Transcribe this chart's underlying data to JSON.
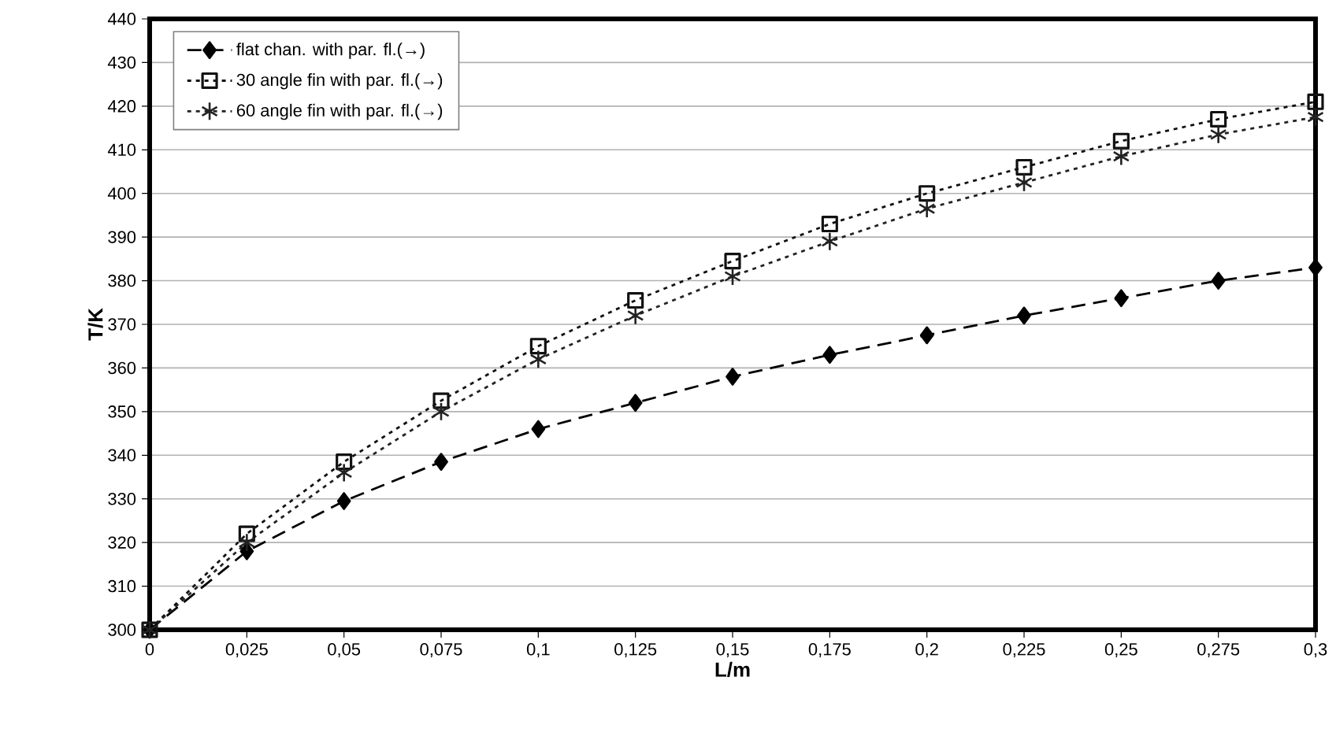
{
  "chart_data": {
    "type": "line",
    "xlabel": "L/m",
    "ylabel": "T/K",
    "x": [
      0,
      0.025,
      0.05,
      0.075,
      0.1,
      0.125,
      0.15,
      0.175,
      0.2,
      0.225,
      0.25,
      0.275,
      0.3
    ],
    "series": [
      {
        "name": "flat chan. with par. fl.(→)",
        "color": "#000000",
        "marker": "diamond",
        "line_style": "dashed",
        "values": [
          300,
          318,
          329.5,
          338.5,
          346,
          352,
          358,
          363,
          367.5,
          372,
          376,
          380,
          383
        ]
      },
      {
        "name": "30 angle fin with par. fl.(→)",
        "color": "#111111",
        "marker": "square",
        "line_style": "dotted",
        "values": [
          300,
          322,
          338.5,
          352.5,
          365,
          375.5,
          384.5,
          393,
          400,
          406,
          412,
          417,
          421
        ]
      },
      {
        "name": "60 angle fin with par. fl.(→)",
        "color": "#222222",
        "marker": "cross",
        "line_style": "dotted",
        "values": [
          300,
          320,
          336,
          350,
          362,
          372,
          381,
          389,
          396.5,
          402.5,
          408.5,
          413.5,
          417.5
        ]
      }
    ],
    "xlim": [
      0,
      0.3
    ],
    "ylim": [
      300,
      440
    ],
    "xticks": [
      0,
      {
        "value": 0.025,
        "label": "0,025"
      },
      {
        "value": 0.05,
        "label": "0,05"
      },
      {
        "value": 0.075,
        "label": "0,075"
      },
      {
        "value": 0.1,
        "label": "0,1"
      },
      {
        "value": 0.125,
        "label": "0,125"
      },
      {
        "value": 0.15,
        "label": "0,15"
      },
      {
        "value": 0.175,
        "label": "0,175"
      },
      {
        "value": 0.2,
        "label": "0,2"
      },
      {
        "value": 0.225,
        "label": "0,225"
      },
      {
        "value": 0.25,
        "label": "0,25"
      },
      {
        "value": 0.275,
        "label": "0,275"
      },
      {
        "value": 0.3,
        "label": "0,3"
      }
    ],
    "yticks": [
      300,
      310,
      320,
      330,
      340,
      350,
      360,
      370,
      380,
      390,
      400,
      410,
      420,
      430,
      440
    ],
    "grid": "y",
    "legend": "top left"
  }
}
